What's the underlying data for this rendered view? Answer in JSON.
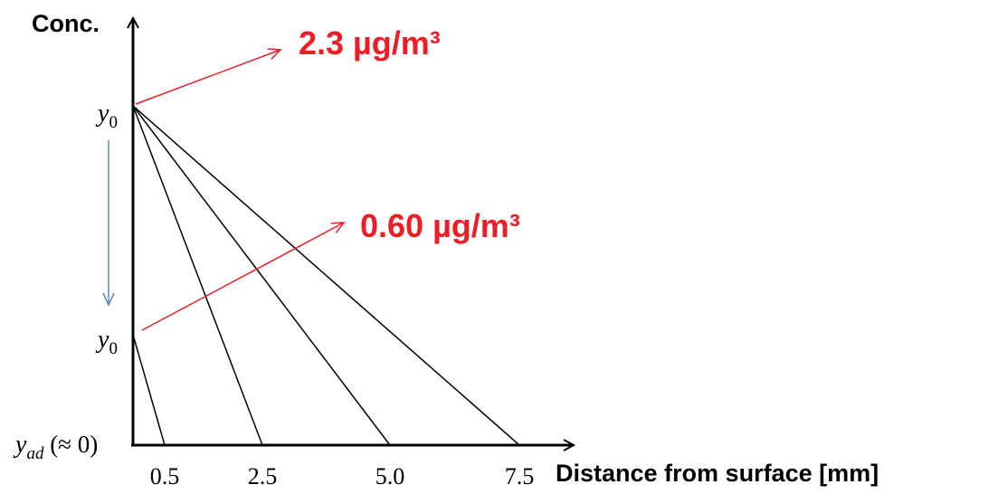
{
  "y_axis_label": "Conc.",
  "x_axis_label": "Distance from surface [mm]",
  "x_ticks": [
    "0.5",
    "2.5",
    "5.0",
    "7.5"
  ],
  "y_labels": {
    "upper": {
      "base": "y",
      "sub": "0"
    },
    "lower": {
      "base": "y",
      "sub": "0"
    },
    "origin": {
      "base": "y",
      "sub": "ad",
      "suffix": " (≈ 0)"
    }
  },
  "annotations": {
    "upper_value": "2.3 µg/m³",
    "lower_value": "0.60 µg/m³"
  },
  "colors": {
    "axis": "#000000",
    "annotation": "#ee1c24",
    "trend_arrow": "#5b86c5"
  }
}
